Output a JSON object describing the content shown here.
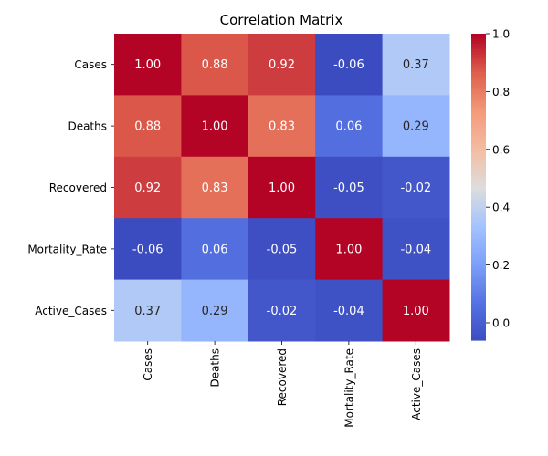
{
  "chart_data": {
    "type": "heatmap",
    "title": "Correlation Matrix",
    "x_labels": [
      "Cases",
      "Deaths",
      "Recovered",
      "Mortality_Rate",
      "Active_Cases"
    ],
    "y_labels": [
      "Cases",
      "Deaths",
      "Recovered",
      "Mortality_Rate",
      "Active_Cases"
    ],
    "values": [
      [
        1.0,
        0.88,
        0.92,
        -0.06,
        0.37
      ],
      [
        0.88,
        1.0,
        0.83,
        0.06,
        0.29
      ],
      [
        0.92,
        0.83,
        1.0,
        -0.05,
        -0.02
      ],
      [
        -0.06,
        0.06,
        -0.05,
        1.0,
        -0.04
      ],
      [
        0.37,
        0.29,
        -0.02,
        -0.04,
        1.0
      ]
    ],
    "value_labels": [
      [
        "1.00",
        "0.88",
        "0.92",
        "-0.06",
        "0.37"
      ],
      [
        "0.88",
        "1.00",
        "0.83",
        "0.06",
        "0.29"
      ],
      [
        "0.92",
        "0.83",
        "1.00",
        "-0.05",
        "-0.02"
      ],
      [
        "-0.06",
        "0.06",
        "-0.05",
        "1.00",
        "-0.04"
      ],
      [
        "0.37",
        "0.29",
        "-0.02",
        "-0.04",
        "1.00"
      ]
    ],
    "colormap": "coolwarm",
    "color_range": [
      -0.06,
      1.0
    ],
    "colorbar_ticks": [
      "0.0",
      "0.2",
      "0.4",
      "0.6",
      "0.8",
      "1.0"
    ],
    "colorbar_tick_values": [
      0.0,
      0.2,
      0.4,
      0.6,
      0.8,
      1.0
    ]
  }
}
